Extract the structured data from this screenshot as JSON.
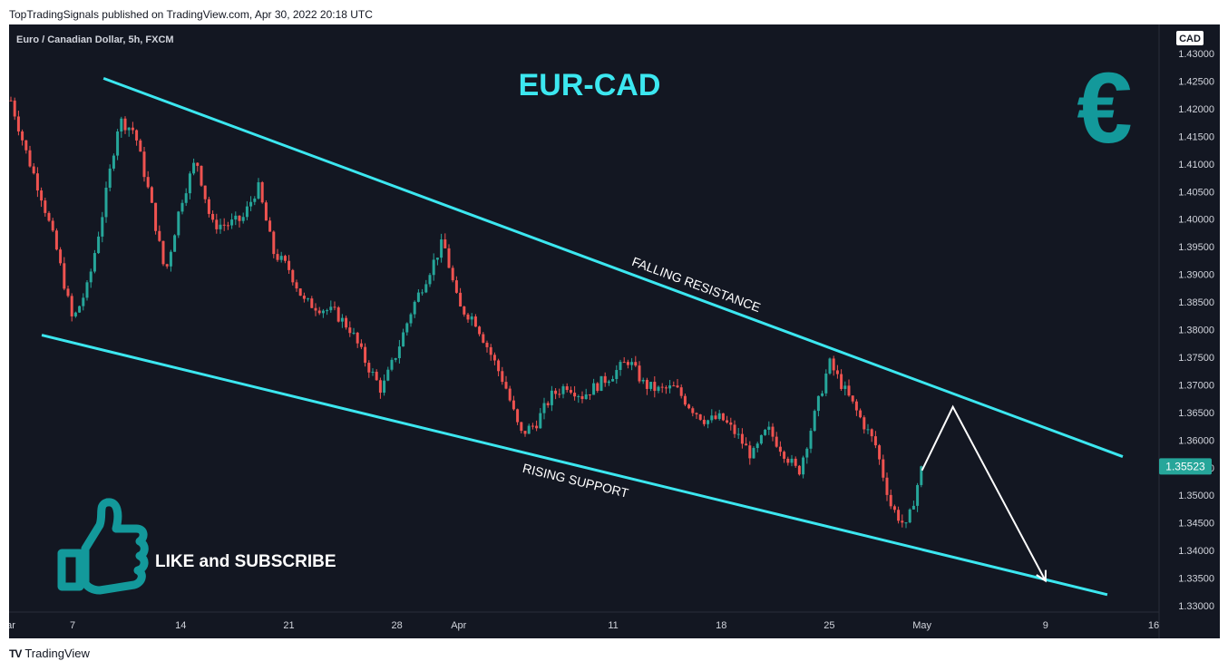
{
  "header": {
    "published": "TopTradingSignals published on TradingView.com, Apr 30, 2022 20:18 UTC"
  },
  "symbol": {
    "title": "Euro / Canadian Dollar, 5h, FXCM"
  },
  "footer": {
    "brand": "TradingView"
  },
  "colors": {
    "background": "#131722",
    "up_candle": "#26a69a",
    "down_candle": "#ef5350",
    "trendline": "#3ce7f0",
    "accent_teal": "#13999b",
    "price_label_bg": "#26a69a"
  },
  "chart_data": {
    "type": "candlestick",
    "title": "EUR-CAD",
    "currency": "CAD",
    "current_price": "1.35523",
    "yticks": [
      "1.43000",
      "1.42500",
      "1.42000",
      "1.41500",
      "1.41000",
      "1.40500",
      "1.40000",
      "1.39500",
      "1.39000",
      "1.38500",
      "1.38000",
      "1.37500",
      "1.37000",
      "1.36500",
      "1.36000",
      "1.35500",
      "1.35000",
      "1.34500",
      "1.34000",
      "1.33500",
      "1.33000"
    ],
    "ylim": [
      1.3275,
      1.4335
    ],
    "xticks": [
      {
        "label": "ar",
        "date": "2022-03-03"
      },
      {
        "label": "7",
        "date": "2022-03-07"
      },
      {
        "label": "14",
        "date": "2022-03-14"
      },
      {
        "label": "21",
        "date": "2022-03-21"
      },
      {
        "label": "28",
        "date": "2022-03-28"
      },
      {
        "label": "Apr",
        "date": "2022-04-01"
      },
      {
        "label": "11",
        "date": "2022-04-11"
      },
      {
        "label": "18",
        "date": "2022-04-18"
      },
      {
        "label": "25",
        "date": "2022-04-25"
      },
      {
        "label": "May",
        "date": "2022-05-01"
      },
      {
        "label": "9",
        "date": "2022-05-09"
      },
      {
        "label": "16",
        "date": "2022-05-16"
      }
    ],
    "price_path": [
      [
        "2022-03-03",
        1.4215
      ],
      [
        "2022-03-04",
        1.412
      ],
      [
        "2022-03-05",
        1.404
      ],
      [
        "2022-03-06",
        1.394
      ],
      [
        "2022-03-07",
        1.3815
      ],
      [
        "2022-03-08",
        1.388
      ],
      [
        "2022-03-09",
        1.402
      ],
      [
        "2022-03-10",
        1.418
      ],
      [
        "2022-03-11",
        1.416
      ],
      [
        "2022-03-12",
        1.404
      ],
      [
        "2022-03-13",
        1.39
      ],
      [
        "2022-03-14",
        1.403
      ],
      [
        "2022-03-15",
        1.411
      ],
      [
        "2022-03-16",
        1.399
      ],
      [
        "2022-03-17",
        1.399
      ],
      [
        "2022-03-18",
        1.4
      ],
      [
        "2022-03-19",
        1.406
      ],
      [
        "2022-03-20",
        1.394
      ],
      [
        "2022-03-21",
        1.391
      ],
      [
        "2022-03-22",
        1.385
      ],
      [
        "2022-03-23",
        1.384
      ],
      [
        "2022-03-24",
        1.383
      ],
      [
        "2022-03-25",
        1.38
      ],
      [
        "2022-03-26",
        1.374
      ],
      [
        "2022-03-27",
        1.369
      ],
      [
        "2022-03-28",
        1.376
      ],
      [
        "2022-03-29",
        1.384
      ],
      [
        "2022-03-30",
        1.39
      ],
      [
        "2022-03-31",
        1.396
      ],
      [
        "2022-04-01",
        1.384
      ],
      [
        "2022-04-02",
        1.382
      ],
      [
        "2022-04-03",
        1.376
      ],
      [
        "2022-04-04",
        1.37
      ],
      [
        "2022-04-05",
        1.361
      ],
      [
        "2022-04-06",
        1.363
      ],
      [
        "2022-04-07",
        1.368
      ],
      [
        "2022-04-08",
        1.37
      ],
      [
        "2022-04-09",
        1.368
      ],
      [
        "2022-04-10",
        1.37
      ],
      [
        "2022-04-11",
        1.372
      ],
      [
        "2022-04-12",
        1.3745
      ],
      [
        "2022-04-13",
        1.37
      ],
      [
        "2022-04-14",
        1.369
      ],
      [
        "2022-04-15",
        1.3695
      ],
      [
        "2022-04-16",
        1.366
      ],
      [
        "2022-04-17",
        1.3635
      ],
      [
        "2022-04-18",
        1.364
      ],
      [
        "2022-04-19",
        1.361
      ],
      [
        "2022-04-20",
        1.357
      ],
      [
        "2022-04-21",
        1.362
      ],
      [
        "2022-04-22",
        1.358
      ],
      [
        "2022-04-23",
        1.354
      ],
      [
        "2022-04-24",
        1.364
      ],
      [
        "2022-04-25",
        1.374
      ],
      [
        "2022-04-26",
        1.369
      ],
      [
        "2022-04-27",
        1.364
      ],
      [
        "2022-04-28",
        1.359
      ],
      [
        "2022-04-29",
        1.348
      ],
      [
        "2022-04-30",
        1.344
      ],
      [
        "2022-05-01",
        1.3552
      ]
    ],
    "drawings": {
      "falling_resistance": {
        "label": "FALLING RESISTANCE",
        "from": [
          "2022-03-09",
          1.4255
        ],
        "to": [
          "2022-05-14",
          1.357
        ]
      },
      "rising_support": {
        "label": "RISING SUPPORT",
        "from": [
          "2022-03-05",
          1.379
        ],
        "to": [
          "2022-05-13",
          1.332
        ]
      },
      "projection": [
        [
          "2022-05-01",
          1.3545
        ],
        [
          "2022-05-03",
          1.366
        ],
        [
          "2022-05-09",
          1.3345
        ]
      ]
    },
    "annotations": {
      "euro_symbol": "€",
      "cta_text": "LIKE and SUBSCRIBE",
      "thumb_icon": "thumbs-up-icon"
    }
  }
}
